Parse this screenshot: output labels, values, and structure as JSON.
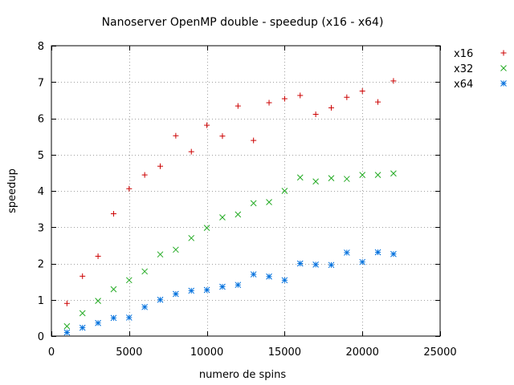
{
  "chart_data": {
    "type": "scatter",
    "title": "Nanoserver OpenMP double - speedup (x16 - x64)",
    "xlabel": "numero de spins",
    "ylabel": "speedup",
    "xlim": [
      0,
      25000
    ],
    "ylim": [
      0,
      8
    ],
    "xticks": [
      0,
      5000,
      10000,
      15000,
      20000,
      25000
    ],
    "yticks": [
      0,
      1,
      2,
      3,
      4,
      5,
      6,
      7,
      8
    ],
    "grid": true,
    "legend_position": "outside-right",
    "x": [
      1000,
      2000,
      3000,
      4000,
      5000,
      6000,
      7000,
      8000,
      9000,
      10000,
      11000,
      12000,
      13000,
      14000,
      15000,
      16000,
      17000,
      18000,
      19000,
      20000,
      21000,
      22000
    ],
    "series": [
      {
        "name": "x16",
        "marker": "plus",
        "color": "#cc0000",
        "values": [
          0.9,
          1.65,
          2.2,
          3.37,
          4.06,
          4.44,
          4.68,
          5.52,
          5.08,
          5.81,
          5.51,
          6.34,
          5.39,
          6.43,
          6.54,
          6.63,
          6.11,
          6.29,
          6.58,
          6.75,
          6.45,
          7.03
        ]
      },
      {
        "name": "x32",
        "marker": "cross",
        "color": "#22aa22",
        "values": [
          0.27,
          0.63,
          0.97,
          1.29,
          1.54,
          1.78,
          2.25,
          2.38,
          2.7,
          2.98,
          3.27,
          3.35,
          3.66,
          3.69,
          4.0,
          4.37,
          4.26,
          4.35,
          4.33,
          4.44,
          4.44,
          4.48
        ]
      },
      {
        "name": "x64",
        "marker": "star",
        "color": "#0070dd",
        "values": [
          0.1,
          0.23,
          0.36,
          0.5,
          0.51,
          0.8,
          1.0,
          1.16,
          1.25,
          1.27,
          1.36,
          1.41,
          1.7,
          1.64,
          1.54,
          2.0,
          1.97,
          1.96,
          2.3,
          2.04,
          2.31,
          2.26
        ]
      }
    ]
  }
}
